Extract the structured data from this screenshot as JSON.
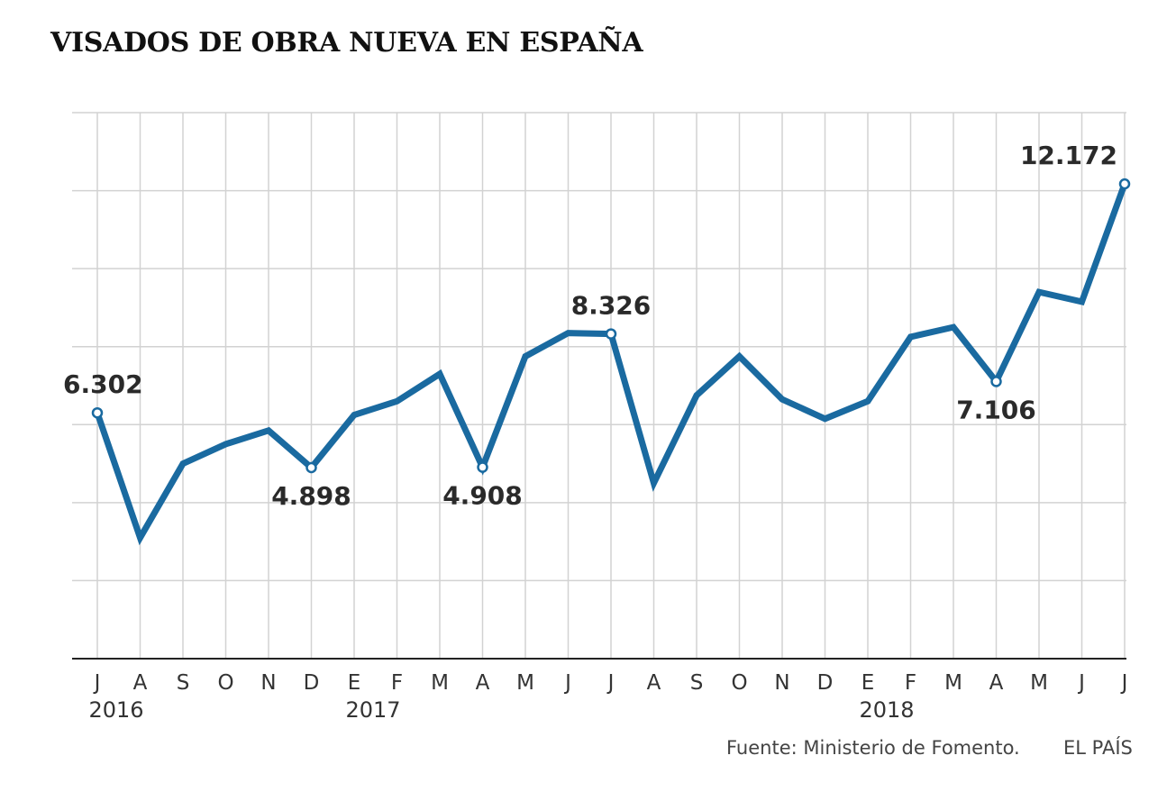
{
  "chart_data": {
    "type": "line",
    "title": "VISADOS DE OBRA NUEVA EN ESPAÑA",
    "tick_labels": [
      "J",
      "A",
      "S",
      "O",
      "N",
      "D",
      "E",
      "F",
      "M",
      "A",
      "M",
      "J",
      "J",
      "A",
      "S",
      "O",
      "N",
      "D",
      "E",
      "F",
      "M",
      "A",
      "M",
      "J",
      "J"
    ],
    "year_labels": [
      {
        "label": "2016",
        "index": 0
      },
      {
        "label": "2017",
        "index": 6
      },
      {
        "label": "2018",
        "index": 18
      }
    ],
    "x": [
      "2016-06",
      "2016-07",
      "2016-08",
      "2016-09",
      "2016-10",
      "2016-11",
      "2016-12",
      "2017-01",
      "2017-02",
      "2017-03",
      "2017-04",
      "2017-05",
      "2017-06",
      "2017-07",
      "2017-08",
      "2017-09",
      "2017-10",
      "2017-11",
      "2017-12",
      "2018-01",
      "2018-02",
      "2018-03",
      "2018-04",
      "2018-05",
      "2018-06"
    ],
    "series": [
      {
        "values": [
          6302,
          3100,
          5000,
          5500,
          5850,
          4898,
          6250,
          6600,
          7300,
          4908,
          7750,
          8350,
          8326,
          4500,
          6750,
          7750,
          6650,
          6150,
          6600,
          8250,
          8500,
          7106,
          9400,
          9150,
          12172
        ],
        "color": "#1a6aa0"
      }
    ],
    "data_labels": [
      {
        "index": 0,
        "text": "6.302"
      },
      {
        "index": 5,
        "text": "4.898"
      },
      {
        "index": 9,
        "text": "4.908"
      },
      {
        "index": 12,
        "text": "8.326"
      },
      {
        "index": 21,
        "text": "7.106"
      },
      {
        "index": 24,
        "text": "12.172"
      }
    ],
    "ylim": [
      0,
      14000
    ],
    "grid": true,
    "xlabel": "",
    "ylabel": ""
  },
  "footer": {
    "source": "Fuente: Ministerio de Fomento.",
    "brand": "EL PAÍS"
  }
}
